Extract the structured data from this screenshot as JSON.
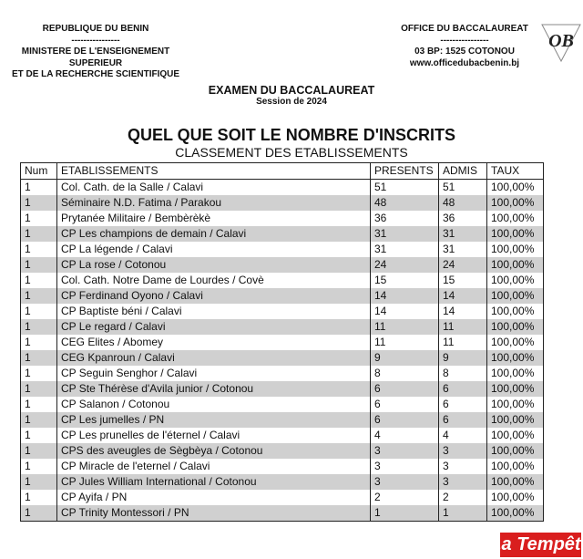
{
  "header_left": {
    "line1": "REPUBLIQUE DU BENIN",
    "sep": "----------------",
    "line2": "MINISTERE DE L'ENSEIGNEMENT",
    "line3": "SUPERIEUR",
    "line4": "ET DE LA RECHERCHE SCIENTIFIQUE"
  },
  "header_right": {
    "line1": "OFFICE DU BACCALAUREAT",
    "sep": "----------------",
    "line2": "03 BP: 1525 COTONOU",
    "line3": "www.officedubacbenin.bj",
    "logo_text": "OB"
  },
  "exam": {
    "title": "EXAMEN DU BACCALAUREAT",
    "session": "Session de 2024"
  },
  "title": "QUEL QUE SOIT LE NOMBRE D'INSCRITS",
  "subtitle": "CLASSEMENT DES ETABLISSEMENTS",
  "table": {
    "columns": [
      "Num",
      "ETABLISSEMENTS",
      "PRESENTS",
      "ADMIS",
      "TAUX"
    ],
    "rows": [
      [
        "1",
        "Col. Cath. de la Salle / Calavi",
        "51",
        "51",
        "100,00%"
      ],
      [
        "1",
        "Séminaire N.D. Fatima / Parakou",
        "48",
        "48",
        "100,00%"
      ],
      [
        "1",
        "Prytanée Militaire / Bembèrèkè",
        "36",
        "36",
        "100,00%"
      ],
      [
        "1",
        "CP Les champions de demain / Calavi",
        "31",
        "31",
        "100,00%"
      ],
      [
        "1",
        "CP La légende / Calavi",
        "31",
        "31",
        "100,00%"
      ],
      [
        "1",
        "CP La rose / Cotonou",
        "24",
        "24",
        "100,00%"
      ],
      [
        "1",
        "Col. Cath. Notre Dame de Lourdes / Covè",
        "15",
        "15",
        "100,00%"
      ],
      [
        "1",
        "CP Ferdinand Oyono / Calavi",
        "14",
        "14",
        "100,00%"
      ],
      [
        "1",
        "CP Baptiste béni / Calavi",
        "14",
        "14",
        "100,00%"
      ],
      [
        "1",
        "CP Le regard / Calavi",
        "11",
        "11",
        "100,00%"
      ],
      [
        "1",
        "CEG Elites / Abomey",
        "11",
        "11",
        "100,00%"
      ],
      [
        "1",
        "CEG Kpanroun / Calavi",
        "9",
        "9",
        "100,00%"
      ],
      [
        "1",
        "CP Seguin Senghor / Calavi",
        "8",
        "8",
        "100,00%"
      ],
      [
        "1",
        "CP Ste Thérèse d'Avila junior / Cotonou",
        "6",
        "6",
        "100,00%"
      ],
      [
        "1",
        "CP Salanon / Cotonou",
        "6",
        "6",
        "100,00%"
      ],
      [
        "1",
        "CP Les jumelles / PN",
        "6",
        "6",
        "100,00%"
      ],
      [
        "1",
        "CP Les prunelles de l'éternel / Calavi",
        "4",
        "4",
        "100,00%"
      ],
      [
        "1",
        "CPS des aveugles de Sègbèya / Cotonou",
        "3",
        "3",
        "100,00%"
      ],
      [
        "1",
        "CP Miracle de l'eternel / Calavi",
        "3",
        "3",
        "100,00%"
      ],
      [
        "1",
        "CP Jules William International / Cotonou",
        "3",
        "3",
        "100,00%"
      ],
      [
        "1",
        "CP Ayifa / PN",
        "2",
        "2",
        "100,00%"
      ],
      [
        "1",
        "CP Trinity Montessori / PN",
        "1",
        "1",
        "100,00%"
      ]
    ]
  },
  "watermark": "La Tempête",
  "colors": {
    "stripe": "#d0d0d0",
    "watermark_bg": "#d91e1e"
  }
}
